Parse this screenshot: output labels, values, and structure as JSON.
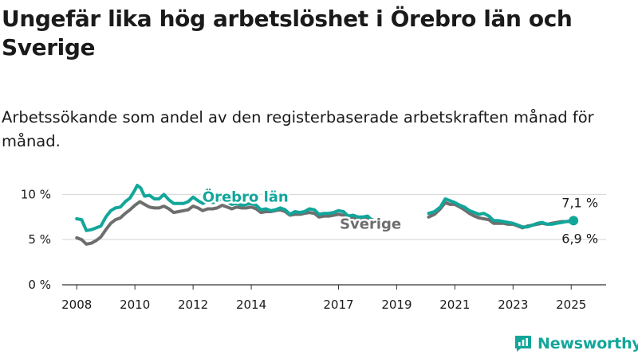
{
  "title": "Ungefär lika hög arbetslöshet i Örebro län och Sverige",
  "subtitle": "Arbetssökande som andel av den registerbaserade arbetskraften månad för månad.",
  "brand": {
    "name": "Newsworthy"
  },
  "colors": {
    "orebro": "#12a69a",
    "sverige": "#6e6e6e",
    "axis": "#333333",
    "grid": "#d4d4d4",
    "text": "#1a1a1a"
  },
  "chart_data": {
    "type": "line",
    "title": "Ungefär lika hög arbetslöshet i Örebro län och Sverige",
    "subtitle": "Arbetssökande som andel av den registerbaserade arbetskraften månad för månad.",
    "xlabel": "",
    "ylabel": "",
    "xlim": [
      2007.5,
      2026.2
    ],
    "ylim": [
      0,
      11
    ],
    "y_ticks": [
      {
        "value": 0,
        "label": "0 %"
      },
      {
        "value": 5,
        "label": "5 %"
      },
      {
        "value": 10,
        "label": "10 %"
      }
    ],
    "x_ticks": [
      {
        "value": 2008,
        "label": "2008"
      },
      {
        "value": 2010,
        "label": "2010"
      },
      {
        "value": 2012,
        "label": "2012"
      },
      {
        "value": 2014,
        "label": "2014"
      },
      {
        "value": 2017,
        "label": "2017"
      },
      {
        "value": 2019,
        "label": "2019"
      },
      {
        "value": 2021,
        "label": "2021"
      },
      {
        "value": 2023,
        "label": "2023"
      },
      {
        "value": 2025,
        "label": "2025"
      }
    ],
    "grid": "horizontal",
    "series": [
      {
        "name": "Örebro län",
        "color": "#12a69a",
        "points": [
          [
            2008.0,
            7.3
          ],
          [
            2008.17,
            7.2
          ],
          [
            2008.33,
            6.0
          ],
          [
            2008.5,
            6.1
          ],
          [
            2008.67,
            6.3
          ],
          [
            2008.83,
            6.5
          ],
          [
            2009.0,
            7.5
          ],
          [
            2009.17,
            8.2
          ],
          [
            2009.33,
            8.5
          ],
          [
            2009.5,
            8.6
          ],
          [
            2009.67,
            9.2
          ],
          [
            2009.83,
            9.6
          ],
          [
            2010.0,
            10.5
          ],
          [
            2010.08,
            11.0
          ],
          [
            2010.2,
            10.7
          ],
          [
            2010.33,
            9.8
          ],
          [
            2010.5,
            9.9
          ],
          [
            2010.67,
            9.5
          ],
          [
            2010.83,
            9.5
          ],
          [
            2011.0,
            10.0
          ],
          [
            2011.17,
            9.4
          ],
          [
            2011.33,
            9.0
          ],
          [
            2011.5,
            9.0
          ],
          [
            2011.67,
            9.0
          ],
          [
            2011.83,
            9.2
          ],
          [
            2012.0,
            9.7
          ],
          [
            2012.17,
            9.3
          ],
          [
            2012.33,
            9.0
          ],
          [
            2012.5,
            9.3
          ],
          [
            2012.67,
            9.1
          ],
          [
            2012.83,
            9.2
          ],
          [
            2013.0,
            9.6
          ],
          [
            2013.17,
            9.2
          ],
          [
            2013.33,
            8.9
          ],
          [
            2013.5,
            9.0
          ],
          [
            2013.67,
            8.8
          ],
          [
            2013.83,
            8.9
          ],
          [
            2014.0,
            9.0
          ],
          [
            2014.17,
            8.8
          ],
          [
            2014.33,
            8.3
          ],
          [
            2014.5,
            8.4
          ],
          [
            2014.67,
            8.2
          ],
          [
            2014.83,
            8.3
          ],
          [
            2015.0,
            8.5
          ],
          [
            2015.17,
            8.3
          ],
          [
            2015.33,
            7.8
          ],
          [
            2015.5,
            8.1
          ],
          [
            2015.67,
            8.0
          ],
          [
            2015.83,
            8.1
          ],
          [
            2016.0,
            8.4
          ],
          [
            2016.17,
            8.3
          ],
          [
            2016.33,
            7.8
          ],
          [
            2016.5,
            7.9
          ],
          [
            2016.67,
            7.9
          ],
          [
            2016.83,
            8.0
          ],
          [
            2017.0,
            8.2
          ],
          [
            2017.17,
            8.1
          ],
          [
            2017.33,
            7.6
          ],
          [
            2017.5,
            7.7
          ],
          [
            2017.67,
            7.5
          ],
          [
            2017.83,
            7.5
          ],
          [
            2018.0,
            7.6
          ],
          [
            2018.17,
            7.1
          ],
          [
            2018.33,
            6.9
          ],
          [
            2020.1,
            7.9
          ],
          [
            2020.3,
            8.1
          ],
          [
            2020.5,
            8.6
          ],
          [
            2020.67,
            9.5
          ],
          [
            2020.83,
            9.3
          ],
          [
            2021.0,
            9.1
          ],
          [
            2021.17,
            8.8
          ],
          [
            2021.33,
            8.6
          ],
          [
            2021.5,
            8.2
          ],
          [
            2021.67,
            8.0
          ],
          [
            2021.83,
            7.8
          ],
          [
            2022.0,
            7.9
          ],
          [
            2022.17,
            7.6
          ],
          [
            2022.33,
            7.1
          ],
          [
            2022.5,
            7.1
          ],
          [
            2022.67,
            7.0
          ],
          [
            2022.83,
            6.9
          ],
          [
            2023.0,
            6.8
          ],
          [
            2023.17,
            6.6
          ],
          [
            2023.33,
            6.4
          ],
          [
            2023.5,
            6.4
          ],
          [
            2023.67,
            6.6
          ],
          [
            2023.83,
            6.8
          ],
          [
            2024.0,
            6.9
          ],
          [
            2024.17,
            6.7
          ],
          [
            2024.33,
            6.7
          ],
          [
            2024.5,
            6.8
          ],
          [
            2024.67,
            6.9
          ],
          [
            2024.83,
            7.0
          ],
          [
            2025.0,
            7.1
          ],
          [
            2025.08,
            7.1
          ]
        ]
      },
      {
        "name": "Sverige",
        "color": "#6e6e6e",
        "points": [
          [
            2008.0,
            5.2
          ],
          [
            2008.17,
            5.0
          ],
          [
            2008.33,
            4.5
          ],
          [
            2008.5,
            4.6
          ],
          [
            2008.67,
            4.9
          ],
          [
            2008.83,
            5.3
          ],
          [
            2009.0,
            6.1
          ],
          [
            2009.17,
            6.8
          ],
          [
            2009.33,
            7.2
          ],
          [
            2009.5,
            7.4
          ],
          [
            2009.67,
            7.9
          ],
          [
            2009.83,
            8.3
          ],
          [
            2010.0,
            8.8
          ],
          [
            2010.17,
            9.2
          ],
          [
            2010.33,
            8.9
          ],
          [
            2010.5,
            8.6
          ],
          [
            2010.67,
            8.5
          ],
          [
            2010.83,
            8.5
          ],
          [
            2011.0,
            8.7
          ],
          [
            2011.17,
            8.4
          ],
          [
            2011.33,
            8.0
          ],
          [
            2011.5,
            8.1
          ],
          [
            2011.67,
            8.2
          ],
          [
            2011.83,
            8.3
          ],
          [
            2012.0,
            8.7
          ],
          [
            2012.17,
            8.5
          ],
          [
            2012.33,
            8.2
          ],
          [
            2012.5,
            8.4
          ],
          [
            2012.67,
            8.4
          ],
          [
            2012.83,
            8.5
          ],
          [
            2013.0,
            8.8
          ],
          [
            2013.17,
            8.6
          ],
          [
            2013.33,
            8.4
          ],
          [
            2013.5,
            8.6
          ],
          [
            2013.67,
            8.5
          ],
          [
            2013.83,
            8.5
          ],
          [
            2014.0,
            8.6
          ],
          [
            2014.17,
            8.4
          ],
          [
            2014.33,
            8.0
          ],
          [
            2014.5,
            8.1
          ],
          [
            2014.67,
            8.1
          ],
          [
            2014.83,
            8.2
          ],
          [
            2015.0,
            8.3
          ],
          [
            2015.17,
            8.1
          ],
          [
            2015.33,
            7.7
          ],
          [
            2015.5,
            7.8
          ],
          [
            2015.67,
            7.8
          ],
          [
            2015.83,
            7.9
          ],
          [
            2016.0,
            8.0
          ],
          [
            2016.17,
            7.9
          ],
          [
            2016.33,
            7.5
          ],
          [
            2016.5,
            7.6
          ],
          [
            2016.67,
            7.6
          ],
          [
            2016.83,
            7.7
          ],
          [
            2017.0,
            7.8
          ],
          [
            2017.17,
            7.7
          ],
          [
            2017.33,
            7.4
          ],
          [
            2017.5,
            7.4
          ],
          [
            2017.67,
            7.3
          ],
          [
            2017.83,
            7.3
          ],
          [
            2018.0,
            7.4
          ],
          [
            2018.17,
            7.2
          ],
          [
            2018.33,
            6.9
          ],
          [
            2020.1,
            7.5
          ],
          [
            2020.3,
            7.8
          ],
          [
            2020.5,
            8.4
          ],
          [
            2020.67,
            9.1
          ],
          [
            2020.83,
            8.9
          ],
          [
            2021.0,
            8.9
          ],
          [
            2021.17,
            8.6
          ],
          [
            2021.33,
            8.3
          ],
          [
            2021.5,
            7.9
          ],
          [
            2021.67,
            7.6
          ],
          [
            2021.83,
            7.4
          ],
          [
            2022.0,
            7.3
          ],
          [
            2022.17,
            7.2
          ],
          [
            2022.33,
            6.8
          ],
          [
            2022.5,
            6.8
          ],
          [
            2022.67,
            6.8
          ],
          [
            2022.83,
            6.7
          ],
          [
            2023.0,
            6.7
          ],
          [
            2023.17,
            6.5
          ],
          [
            2023.33,
            6.3
          ],
          [
            2023.5,
            6.5
          ],
          [
            2023.67,
            6.6
          ],
          [
            2023.83,
            6.7
          ],
          [
            2024.0,
            6.8
          ],
          [
            2024.17,
            6.7
          ],
          [
            2024.33,
            6.8
          ],
          [
            2024.5,
            6.9
          ],
          [
            2024.67,
            7.0
          ],
          [
            2024.83,
            7.0
          ],
          [
            2025.0,
            7.0
          ],
          [
            2025.08,
            6.9
          ]
        ]
      }
    ],
    "annotations": [
      {
        "series": "Örebro län",
        "label": "Örebro län",
        "x": 2013.8,
        "y": 9.8,
        "role": "series-label"
      },
      {
        "series": "Sverige",
        "label": "Sverige",
        "x": 2018.1,
        "y": 6.8,
        "role": "series-label"
      },
      {
        "series": "Örebro län",
        "label": "7,1 %",
        "x": 2025.08,
        "y": 7.1,
        "role": "end-value"
      },
      {
        "series": "Sverige",
        "label": "6,9 %",
        "x": 2025.08,
        "y": 6.9,
        "role": "end-value"
      }
    ]
  }
}
